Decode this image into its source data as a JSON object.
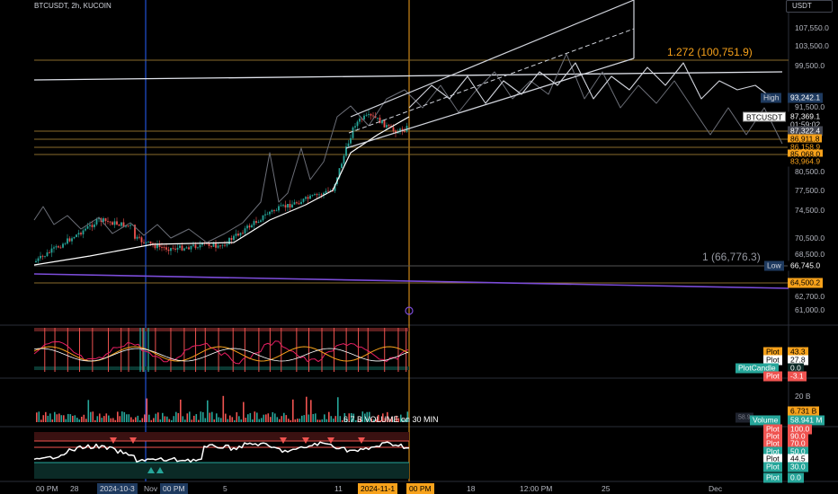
{
  "header": {
    "symbol_line": "BTCUSDT, 2h, KUCOIN",
    "currency": "USDT"
  },
  "price_axis": {
    "ticks": [
      "107,550.0",
      "103,500.0",
      "99,500.0",
      "91,500.0",
      "80,500.0",
      "77,500.0",
      "74,500.0",
      "70,500.0",
      "68,500.0",
      "62,700.0",
      "61,000.0"
    ],
    "high_label": "High",
    "high_value": "93,242.1",
    "symbol_tag": "BTCUSDT",
    "last_price": "87,369.1",
    "countdown": "01:59:02",
    "levels": [
      "87,322.4",
      "86,911.8",
      "86,158.9",
      "85,068.0",
      "83,964.9"
    ],
    "low_label": "Low",
    "low_value": "66,745.0",
    "support_value": "64,500.2"
  },
  "fib": {
    "upper_label": "1.272 (100,751.9)",
    "lower_label": "1 (66,776.3)"
  },
  "oscillator_pane": {
    "plot_labels": [
      "Plot",
      "Plot",
      "PlotCandle",
      "Plot"
    ],
    "plot_values": [
      "43.3",
      "27.8",
      "0.0",
      "-3.1"
    ]
  },
  "volume_pane": {
    "axis_label": "20 B",
    "value_tag": "6.731 B",
    "overlay_text": "6.7 B VOLUME on 30 MIN",
    "faded_value": "58.9",
    "volume_label": "Volume",
    "volume_value": "58.941 M"
  },
  "rsi_pane": {
    "plot_labels": [
      "Plot",
      "Plot",
      "Plot",
      "Plot",
      "Plot",
      "Plot",
      "Plot"
    ],
    "plot_values": [
      "100.0",
      "90.0",
      "70.0",
      "50.0",
      "44.5",
      "30.0",
      "0.0"
    ]
  },
  "time_axis": {
    "ticks": [
      "00 PM",
      "28",
      "5",
      "11",
      "18",
      "12:00 PM",
      "25",
      "Dec"
    ],
    "highlight_left": "2024-10-3",
    "highlight_left_time": "00 PM",
    "highlight_right": "2024-11-1",
    "highlight_right_time": "00 PM",
    "nov_label": "Nov"
  },
  "colors": {
    "up": "#26a69a",
    "down": "#ef5350",
    "orange": "#f7a21b",
    "purple": "#7b4cd8",
    "blue_line": "#2962ff"
  }
}
